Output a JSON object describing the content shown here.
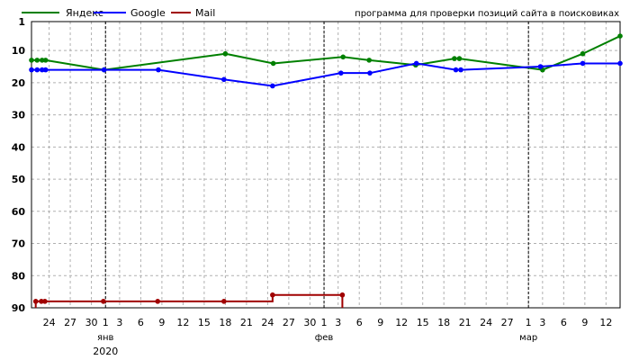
{
  "chart_data": {
    "type": "line",
    "subtitle": "программа для проверки позиций сайта в поисковиках",
    "legend_position": "top-left",
    "grid": true,
    "y_reversed": true,
    "ylim": [
      1,
      90
    ],
    "y_ticks": [
      "1",
      "10",
      "20",
      "30",
      "40",
      "50",
      "60",
      "70",
      "80",
      "90"
    ],
    "x_ticks": [
      {
        "day": 24,
        "label": "24"
      },
      {
        "day": 27,
        "label": "27"
      },
      {
        "day": 30,
        "label": "30"
      },
      {
        "day": 32,
        "label": "1"
      },
      {
        "day": 34,
        "label": "3"
      },
      {
        "day": 37,
        "label": "6"
      },
      {
        "day": 40,
        "label": "9"
      },
      {
        "day": 43,
        "label": "12"
      },
      {
        "day": 46,
        "label": "15"
      },
      {
        "day": 49,
        "label": "18"
      },
      {
        "day": 52,
        "label": "21"
      },
      {
        "day": 55,
        "label": "24"
      },
      {
        "day": 58,
        "label": "27"
      },
      {
        "day": 61,
        "label": "30"
      },
      {
        "day": 63,
        "label": "1"
      },
      {
        "day": 65,
        "label": "3"
      },
      {
        "day": 68,
        "label": "6"
      },
      {
        "day": 71,
        "label": "9"
      },
      {
        "day": 74,
        "label": "12"
      },
      {
        "day": 77,
        "label": "15"
      },
      {
        "day": 80,
        "label": "18"
      },
      {
        "day": 83,
        "label": "21"
      },
      {
        "day": 86,
        "label": "24"
      },
      {
        "day": 89,
        "label": "27"
      },
      {
        "day": 92,
        "label": "1"
      },
      {
        "day": 94,
        "label": "3"
      },
      {
        "day": 97,
        "label": "6"
      },
      {
        "day": 100,
        "label": "9"
      },
      {
        "day": 103,
        "label": "12"
      }
    ],
    "x_range": [
      21.5,
      105
    ],
    "months": [
      {
        "day": 32,
        "label": "янв"
      },
      {
        "day": 63,
        "label": "фев"
      },
      {
        "day": 92,
        "label": "мар"
      }
    ],
    "year_label": "2020",
    "series": [
      {
        "name": "Яндекс",
        "color": "#008000",
        "points": [
          [
            21.5,
            13
          ],
          [
            22.3,
            13
          ],
          [
            23,
            13
          ],
          [
            23.5,
            13
          ],
          [
            31.8,
            16
          ],
          [
            49,
            11
          ],
          [
            55.8,
            14
          ],
          [
            65.7,
            12
          ],
          [
            69.4,
            13
          ],
          [
            76,
            14.5
          ],
          [
            81.5,
            12.5
          ],
          [
            82.2,
            12.5
          ],
          [
            94,
            16
          ],
          [
            99.7,
            11
          ],
          [
            105,
            5.5
          ]
        ]
      },
      {
        "name": "Google",
        "color": "#0000FF",
        "points": [
          [
            21.5,
            16
          ],
          [
            22.3,
            16
          ],
          [
            23,
            16
          ],
          [
            23.5,
            16
          ],
          [
            31.8,
            16
          ],
          [
            39.5,
            16
          ],
          [
            48.8,
            19
          ],
          [
            55.7,
            21
          ],
          [
            65.4,
            17
          ],
          [
            69.5,
            17
          ],
          [
            76.1,
            14
          ],
          [
            81.7,
            16
          ],
          [
            82.4,
            16
          ],
          [
            93.7,
            15
          ],
          [
            99.7,
            14
          ],
          [
            105,
            14
          ]
        ]
      },
      {
        "name": "Mail",
        "color": "#A00000",
        "points": [
          [
            22.1,
            88
          ],
          [
            22.9,
            88
          ],
          [
            23.4,
            88
          ],
          [
            31.7,
            88
          ],
          [
            39.4,
            88
          ],
          [
            48.8,
            88
          ],
          [
            55.7,
            86
          ],
          [
            65.6,
            86
          ]
        ]
      }
    ]
  }
}
